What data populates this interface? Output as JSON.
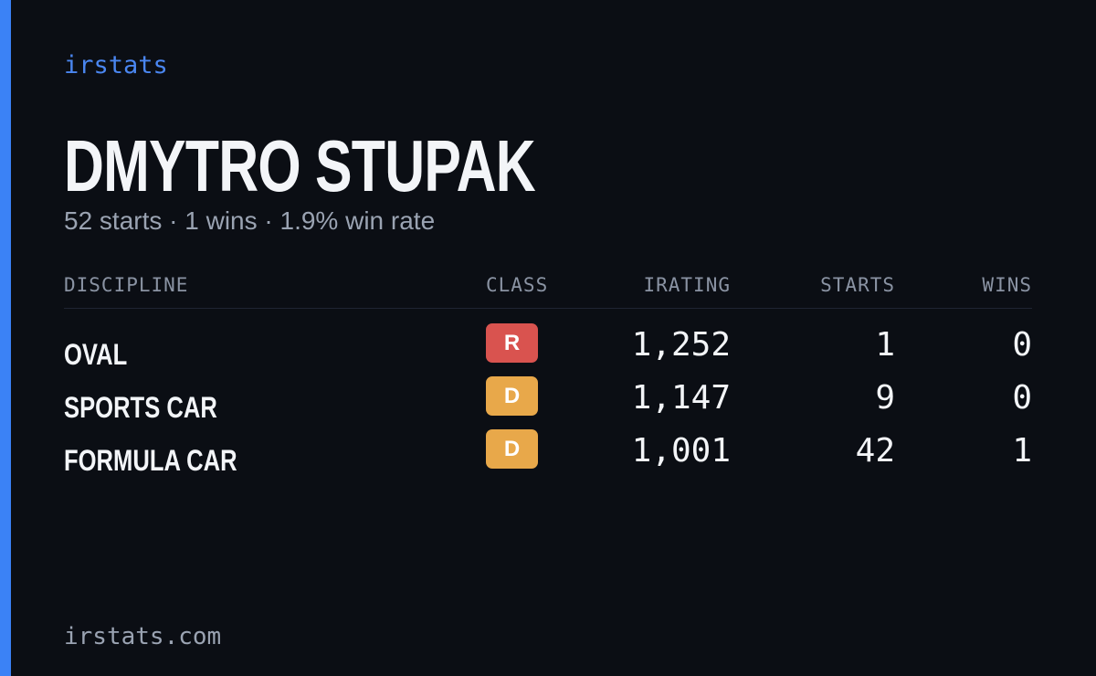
{
  "brand": "irstats",
  "driver": {
    "name": "DMYTRO STUPAK",
    "summary": "52 starts · 1 wins · 1.9% win rate"
  },
  "table": {
    "headers": [
      "DISCIPLINE",
      "CLASS",
      "IRATING",
      "STARTS",
      "WINS"
    ],
    "rows": [
      {
        "discipline": "OVAL",
        "class": "R",
        "class_color": "#d9534f",
        "irating": "1,252",
        "starts": "1",
        "wins": "0"
      },
      {
        "discipline": "SPORTS CAR",
        "class": "D",
        "class_color": "#e8a84a",
        "irating": "1,147",
        "starts": "9",
        "wins": "0"
      },
      {
        "discipline": "FORMULA CAR",
        "class": "D",
        "class_color": "#e8a84a",
        "irating": "1,001",
        "starts": "42",
        "wins": "1"
      }
    ]
  },
  "footer": "irstats.com"
}
